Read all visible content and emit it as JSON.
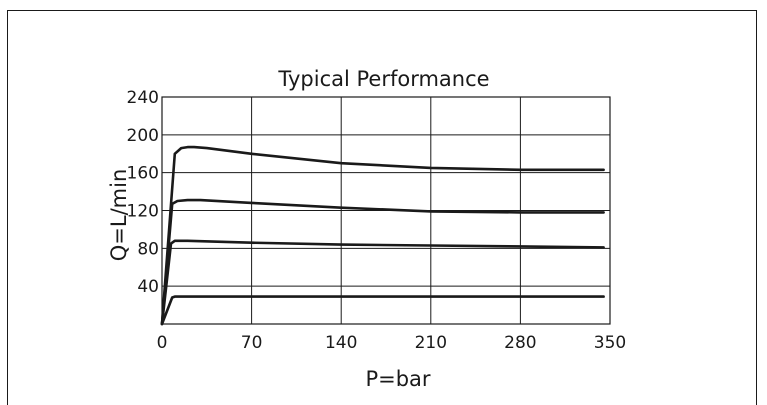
{
  "chart_data": {
    "type": "line",
    "title": "Typical Performance",
    "xlabel": "P=bar",
    "ylabel": "Q=L/min",
    "xlim": [
      0,
      350
    ],
    "ylim": [
      0,
      240
    ],
    "x_ticks": [
      0,
      70,
      140,
      210,
      280,
      350
    ],
    "y_ticks": [
      40,
      80,
      120,
      160,
      200,
      240
    ],
    "grid": true,
    "series": [
      {
        "x": [
          0,
          10,
          15,
          20,
          25,
          35,
          70,
          140,
          210,
          280,
          345
        ],
        "values": [
          0,
          180,
          186,
          187,
          187,
          186,
          180,
          170,
          165,
          163,
          163
        ]
      },
      {
        "x": [
          0,
          8,
          12,
          20,
          30,
          70,
          140,
          210,
          280,
          345
        ],
        "values": [
          0,
          127,
          130,
          131,
          131,
          128,
          123,
          119,
          118,
          118
        ]
      },
      {
        "x": [
          0,
          7,
          10,
          20,
          70,
          140,
          210,
          280,
          345
        ],
        "values": [
          0,
          85,
          88,
          88,
          86,
          84,
          83,
          82,
          81
        ]
      },
      {
        "x": [
          0,
          8,
          10,
          345
        ],
        "values": [
          0,
          28,
          29,
          29
        ]
      }
    ],
    "colors": {
      "line": "#1a1a1a",
      "grid": "#1a1a1a"
    }
  }
}
